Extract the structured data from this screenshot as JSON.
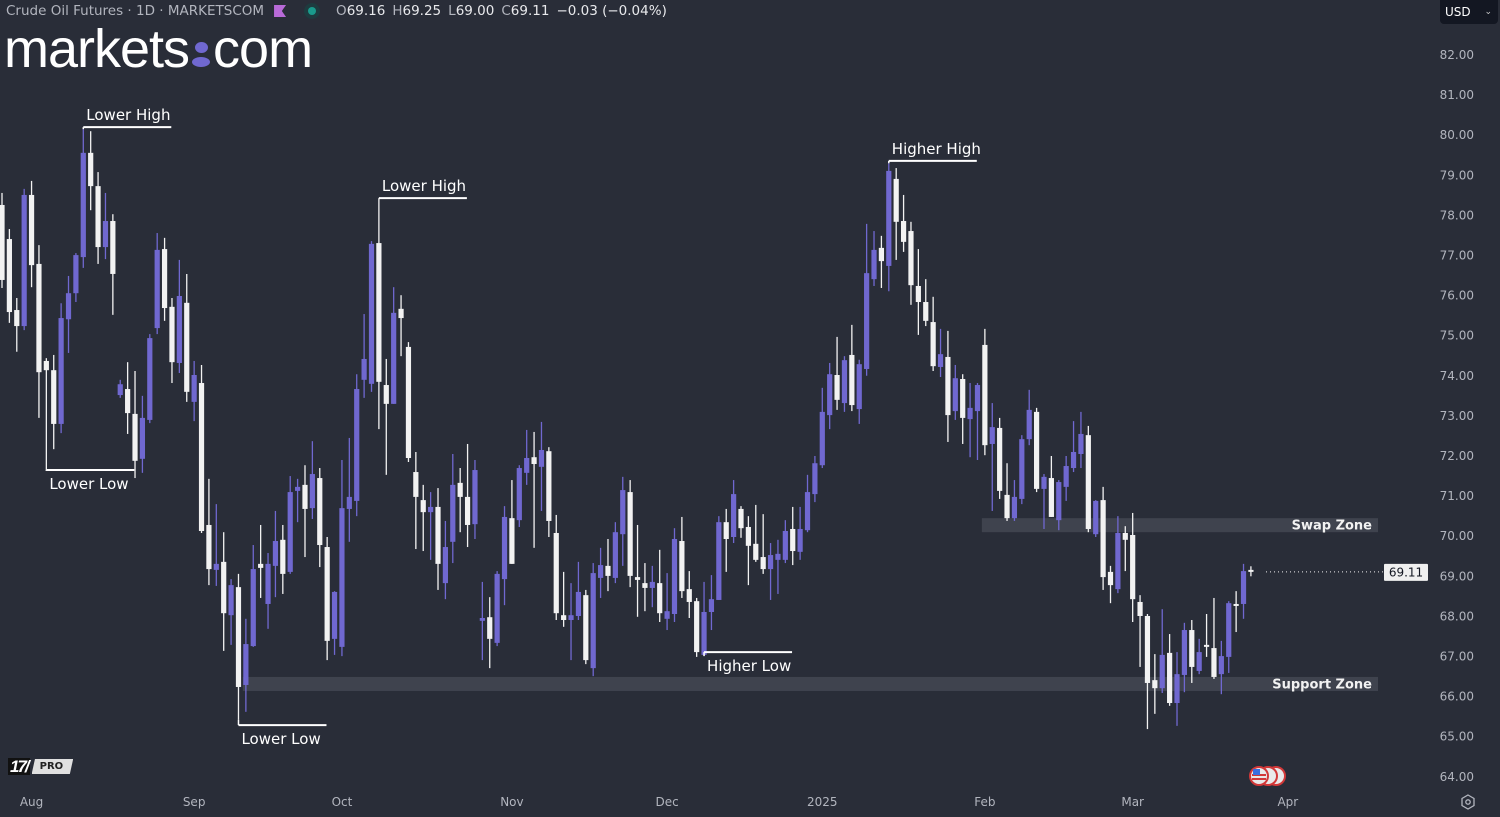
{
  "header": {
    "title": "Crude Oil Futures · 1D · MARKETSCOM",
    "ohlc": [
      {
        "key": "O",
        "value": "69.16"
      },
      {
        "key": "H",
        "value": "69.25"
      },
      {
        "key": "L",
        "value": "69.00"
      },
      {
        "key": "C",
        "value": "69.11"
      }
    ],
    "change": "−0.03 (−0.04%)",
    "icons": [
      "flag-icon",
      "market-status-icon"
    ]
  },
  "logo": {
    "left": "markets",
    "right": "com"
  },
  "currency": {
    "value": "USD"
  },
  "tradingview": {
    "badge": "PRO"
  },
  "colors": {
    "background": "#292d38",
    "up": "#7068d0",
    "down": "#f2f2f2",
    "zone": "#3f434e",
    "axis_text": "#b2b5be"
  },
  "chart_data": {
    "type": "candlestick",
    "title": "Crude Oil Futures · 1D · MARKETSCOM",
    "ylim": [
      63.5,
      82.6
    ],
    "y_ticks": [
      "82.00",
      "81.00",
      "80.00",
      "79.00",
      "78.00",
      "77.00",
      "76.00",
      "75.00",
      "74.00",
      "73.00",
      "72.00",
      "71.00",
      "70.00",
      "69.00",
      "68.00",
      "67.00",
      "66.00",
      "65.00",
      "64.00"
    ],
    "x_ticks": [
      {
        "label": "Aug",
        "index": 4
      },
      {
        "label": "Sep",
        "index": 26
      },
      {
        "label": "Oct",
        "index": 46
      },
      {
        "label": "Nov",
        "index": 69
      },
      {
        "label": "Dec",
        "index": 90
      },
      {
        "label": "2025",
        "index": 111
      },
      {
        "label": "Feb",
        "index": 133
      },
      {
        "label": "Mar",
        "index": 153
      },
      {
        "label": "Apr",
        "index": 174
      }
    ],
    "last_price": "69.11",
    "candle_fields": [
      "open",
      "high",
      "low",
      "close"
    ],
    "candles": [
      [
        78.26,
        78.56,
        76.19,
        76.39
      ],
      [
        77.41,
        77.66,
        75.32,
        75.59
      ],
      [
        75.64,
        75.94,
        74.6,
        75.24
      ],
      [
        75.24,
        78.66,
        75.14,
        78.51
      ],
      [
        78.51,
        78.86,
        76.21,
        76.76
      ],
      [
        76.79,
        77.26,
        72.95,
        74.09
      ],
      [
        74.37,
        74.44,
        71.63,
        74.14
      ],
      [
        74.14,
        74.52,
        72.17,
        72.8
      ],
      [
        72.8,
        75.81,
        72.57,
        75.44
      ],
      [
        75.41,
        76.49,
        74.57,
        76.06
      ],
      [
        76.06,
        77.06,
        75.84,
        77.01
      ],
      [
        76.96,
        80.15,
        76.69,
        79.56
      ],
      [
        79.56,
        80.1,
        78.13,
        78.73
      ],
      [
        78.73,
        79.08,
        76.79,
        77.21
      ],
      [
        77.21,
        78.56,
        76.91,
        77.86
      ],
      [
        77.86,
        78.03,
        75.52,
        76.54
      ],
      [
        73.52,
        73.9,
        73.45,
        73.79
      ],
      [
        73.67,
        74.34,
        72.55,
        73.07
      ],
      [
        73.05,
        74.12,
        71.45,
        71.88
      ],
      [
        71.93,
        73.5,
        71.58,
        72.95
      ],
      [
        72.9,
        75.04,
        72.82,
        74.94
      ],
      [
        75.19,
        77.56,
        75.04,
        77.14
      ],
      [
        77.16,
        77.44,
        75.37,
        75.69
      ],
      [
        75.72,
        75.94,
        73.82,
        74.34
      ],
      [
        74.32,
        76.89,
        74.07,
        75.99
      ],
      [
        75.82,
        76.54,
        73.35,
        73.6
      ],
      [
        73.35,
        74.37,
        72.87,
        74.02
      ],
      [
        73.82,
        74.27,
        70.08,
        70.13
      ],
      [
        70.28,
        71.43,
        68.78,
        69.18
      ],
      [
        69.16,
        70.8,
        68.76,
        69.31
      ],
      [
        69.36,
        70.1,
        67.14,
        68.08
      ],
      [
        68.03,
        68.93,
        67.29,
        68.78
      ],
      [
        68.73,
        69.06,
        65.42,
        66.24
      ],
      [
        66.29,
        67.94,
        65.62,
        67.31
      ],
      [
        67.26,
        69.78,
        67.24,
        69.18
      ],
      [
        69.31,
        70.28,
        68.46,
        69.21
      ],
      [
        68.31,
        69.58,
        67.69,
        69.31
      ],
      [
        69.26,
        70.63,
        68.48,
        69.88
      ],
      [
        69.91,
        70.28,
        68.56,
        69.06
      ],
      [
        69.11,
        71.5,
        69.06,
        71.1
      ],
      [
        71.13,
        71.43,
        70.35,
        71.23
      ],
      [
        71.28,
        71.77,
        69.48,
        70.68
      ],
      [
        70.7,
        72.37,
        70.43,
        71.55
      ],
      [
        71.45,
        71.7,
        69.23,
        69.78
      ],
      [
        69.73,
        69.98,
        66.91,
        67.39
      ],
      [
        67.44,
        68.63,
        67.04,
        68.61
      ],
      [
        67.24,
        71.9,
        67.01,
        70.7
      ],
      [
        70.68,
        72.45,
        69.86,
        70.98
      ],
      [
        70.88,
        74.04,
        70.5,
        73.67
      ],
      [
        73.9,
        75.54,
        73.45,
        74.42
      ],
      [
        73.8,
        77.36,
        73.6,
        77.29
      ],
      [
        77.31,
        78.43,
        72.67,
        73.85
      ],
      [
        73.77,
        74.42,
        71.53,
        73.3
      ],
      [
        73.3,
        76.21,
        73.3,
        75.57
      ],
      [
        75.67,
        76.01,
        74.49,
        75.44
      ],
      [
        74.72,
        74.84,
        71.85,
        71.95
      ],
      [
        71.6,
        72.1,
        69.68,
        70.98
      ],
      [
        70.9,
        71.28,
        69.63,
        70.6
      ],
      [
        70.6,
        71.1,
        69.41,
        70.73
      ],
      [
        70.73,
        71.2,
        68.66,
        69.31
      ],
      [
        68.83,
        70.38,
        68.43,
        69.73
      ],
      [
        69.86,
        72.05,
        69.33,
        71.28
      ],
      [
        71.33,
        71.7,
        70.1,
        70.98
      ],
      [
        70.98,
        72.3,
        69.73,
        70.28
      ],
      [
        70.3,
        71.9,
        69.93,
        71.65
      ],
      [
        67.89,
        68.86,
        66.91,
        67.96
      ],
      [
        67.98,
        68.48,
        66.71,
        67.44
      ],
      [
        67.34,
        69.13,
        67.26,
        69.06
      ],
      [
        68.93,
        70.75,
        68.28,
        70.48
      ],
      [
        70.45,
        71.4,
        69.31,
        69.31
      ],
      [
        70.4,
        71.77,
        70.23,
        71.7
      ],
      [
        71.58,
        72.65,
        71.28,
        71.95
      ],
      [
        71.97,
        72.6,
        69.71,
        71.8
      ],
      [
        71.73,
        72.85,
        70.63,
        72.15
      ],
      [
        72.12,
        72.22,
        69.98,
        70.38
      ],
      [
        70.08,
        70.53,
        67.91,
        68.08
      ],
      [
        68.03,
        69.11,
        67.74,
        67.91
      ],
      [
        67.91,
        68.83,
        66.91,
        68.03
      ],
      [
        68.01,
        69.36,
        67.91,
        68.61
      ],
      [
        68.53,
        68.66,
        66.81,
        66.91
      ],
      [
        66.71,
        69.33,
        66.51,
        69.08
      ],
      [
        68.96,
        69.71,
        68.46,
        69.28
      ],
      [
        69.26,
        69.93,
        68.63,
        69.01
      ],
      [
        68.96,
        70.35,
        68.83,
        70.1
      ],
      [
        70.05,
        71.48,
        69.26,
        71.15
      ],
      [
        71.1,
        71.4,
        68.73,
        69.01
      ],
      [
        68.98,
        70.28,
        67.99,
        68.91
      ],
      [
        68.83,
        69.33,
        68.13,
        68.71
      ],
      [
        68.71,
        69.26,
        68.23,
        68.86
      ],
      [
        68.83,
        69.66,
        67.86,
        68.08
      ],
      [
        67.94,
        69.08,
        67.66,
        68.13
      ],
      [
        68.06,
        70.2,
        67.86,
        69.93
      ],
      [
        69.88,
        70.48,
        68.46,
        68.63
      ],
      [
        68.68,
        69.13,
        67.96,
        68.36
      ],
      [
        68.38,
        68.46,
        66.99,
        67.11
      ],
      [
        67.04,
        68.86,
        67.01,
        68.11
      ],
      [
        68.11,
        69.03,
        67.66,
        68.43
      ],
      [
        68.41,
        70.5,
        68.41,
        70.35
      ],
      [
        70.35,
        70.68,
        69.11,
        69.93
      ],
      [
        69.98,
        71.4,
        69.83,
        71.05
      ],
      [
        70.68,
        70.75,
        69.96,
        70.2
      ],
      [
        70.23,
        70.5,
        68.78,
        69.76
      ],
      [
        69.81,
        70.78,
        69.36,
        69.41
      ],
      [
        69.48,
        70.55,
        69.06,
        69.18
      ],
      [
        69.18,
        69.83,
        68.41,
        69.53
      ],
      [
        69.41,
        69.91,
        68.56,
        69.56
      ],
      [
        69.41,
        70.4,
        69.33,
        70.13
      ],
      [
        70.18,
        70.73,
        69.28,
        69.63
      ],
      [
        69.61,
        70.73,
        69.41,
        70.18
      ],
      [
        70.15,
        71.53,
        70.1,
        71.1
      ],
      [
        71.05,
        72.0,
        70.85,
        71.82
      ],
      [
        71.77,
        73.7,
        71.7,
        73.1
      ],
      [
        73.02,
        74.32,
        72.67,
        74.04
      ],
      [
        74.02,
        74.97,
        73.15,
        73.4
      ],
      [
        73.32,
        74.49,
        73.1,
        74.39
      ],
      [
        74.52,
        75.27,
        73.12,
        73.27
      ],
      [
        73.17,
        74.4,
        72.8,
        74.29
      ],
      [
        74.17,
        77.79,
        74.0,
        76.56
      ],
      [
        76.41,
        77.61,
        76.24,
        77.14
      ],
      [
        77.19,
        77.49,
        76.19,
        76.86
      ],
      [
        76.74,
        79.3,
        76.11,
        79.11
      ],
      [
        78.91,
        79.18,
        76.89,
        77.84
      ],
      [
        77.86,
        78.51,
        77.09,
        77.34
      ],
      [
        77.61,
        77.84,
        75.77,
        76.26
      ],
      [
        76.24,
        77.16,
        75.02,
        75.84
      ],
      [
        75.84,
        76.41,
        75.24,
        75.37
      ],
      [
        75.34,
        75.97,
        74.12,
        74.24
      ],
      [
        74.22,
        75.17,
        73.97,
        74.54
      ],
      [
        74.47,
        75.12,
        72.35,
        73.02
      ],
      [
        73.12,
        74.27,
        72.9,
        73.94
      ],
      [
        73.92,
        74.04,
        72.3,
        72.95
      ],
      [
        72.92,
        73.82,
        71.97,
        73.2
      ],
      [
        73.12,
        73.82,
        71.9,
        73.77
      ],
      [
        74.77,
        75.17,
        72.02,
        72.27
      ],
      [
        72.3,
        73.32,
        70.63,
        72.72
      ],
      [
        72.7,
        72.95,
        70.93,
        71.13
      ],
      [
        71.03,
        71.82,
        70.38,
        70.45
      ],
      [
        70.45,
        71.4,
        70.38,
        70.98
      ],
      [
        70.93,
        72.52,
        70.8,
        72.42
      ],
      [
        72.42,
        73.65,
        72.27,
        73.15
      ],
      [
        73.1,
        73.2,
        71.1,
        71.18
      ],
      [
        71.18,
        71.55,
        70.18,
        71.48
      ],
      [
        71.45,
        72.0,
        70.48,
        70.48
      ],
      [
        70.4,
        71.4,
        70.15,
        71.35
      ],
      [
        71.23,
        72.0,
        70.88,
        71.75
      ],
      [
        71.7,
        72.87,
        71.6,
        72.1
      ],
      [
        72.05,
        73.1,
        71.7,
        72.55
      ],
      [
        72.52,
        72.75,
        70.1,
        70.18
      ],
      [
        70.05,
        70.9,
        69.98,
        70.88
      ],
      [
        70.9,
        71.23,
        68.66,
        68.98
      ],
      [
        69.11,
        69.26,
        68.33,
        68.78
      ],
      [
        68.68,
        70.5,
        68.58,
        70.08
      ],
      [
        70.08,
        70.25,
        69.13,
        69.91
      ],
      [
        70.03,
        70.58,
        67.86,
        68.43
      ],
      [
        68.36,
        68.53,
        66.74,
        68.01
      ],
      [
        68.01,
        68.06,
        65.19,
        66.34
      ],
      [
        66.41,
        67.06,
        65.57,
        66.21
      ],
      [
        66.21,
        68.18,
        66.09,
        67.04
      ],
      [
        67.09,
        67.56,
        65.77,
        65.84
      ],
      [
        65.84,
        67.11,
        65.27,
        66.56
      ],
      [
        66.54,
        67.84,
        66.11,
        67.66
      ],
      [
        67.66,
        67.91,
        66.34,
        66.74
      ],
      [
        66.64,
        67.44,
        66.56,
        67.11
      ],
      [
        67.29,
        68.06,
        66.99,
        67.24
      ],
      [
        67.21,
        68.46,
        66.44,
        66.49
      ],
      [
        66.56,
        67.39,
        66.06,
        67.01
      ],
      [
        66.99,
        68.38,
        66.59,
        68.33
      ],
      [
        68.31,
        68.63,
        67.61,
        68.26
      ],
      [
        68.31,
        69.31,
        67.94,
        69.13
      ],
      [
        69.16,
        69.25,
        69.0,
        69.11
      ]
    ],
    "zones": [
      {
        "label": "Swap Zone",
        "from_index": 133,
        "price_low": 70.1,
        "price_high": 70.45
      },
      {
        "label": "Support Zone",
        "from_index": 33,
        "price_low": 66.14,
        "price_high": 66.49
      }
    ],
    "annotations": [
      {
        "label": "Lower High",
        "kind": "high",
        "index": 11,
        "price": 80.2
      },
      {
        "label": "Lower Low",
        "kind": "low",
        "index": 6,
        "price": 71.65
      },
      {
        "label": "Lower High",
        "kind": "high",
        "index": 51,
        "price": 78.43
      },
      {
        "label": "Lower Low",
        "kind": "low",
        "index": 32,
        "price": 65.29
      },
      {
        "label": "Higher High",
        "kind": "high",
        "index": 120,
        "price": 79.36
      },
      {
        "label": "Higher Low",
        "kind": "low",
        "index": 95,
        "price": 67.11
      }
    ]
  }
}
